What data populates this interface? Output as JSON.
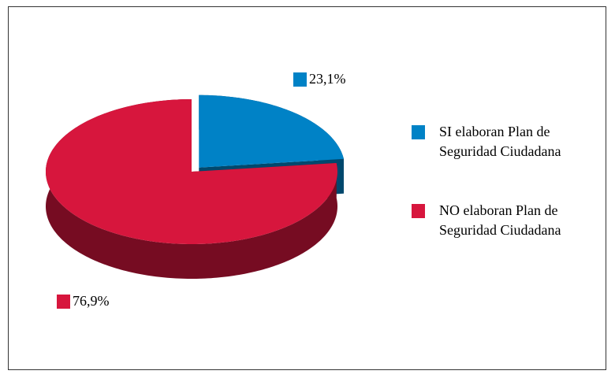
{
  "chart_data": {
    "type": "pie",
    "categories": [
      "SI elaboran Plan de Seguridad Ciudadana",
      "NO elaboran Plan de Seguridad Ciudadana"
    ],
    "values": [
      23.1,
      76.9
    ],
    "value_labels": [
      "23,1%",
      "76,9%"
    ],
    "colors": [
      "#0082c6",
      "#d7163d"
    ],
    "legend": "right"
  }
}
